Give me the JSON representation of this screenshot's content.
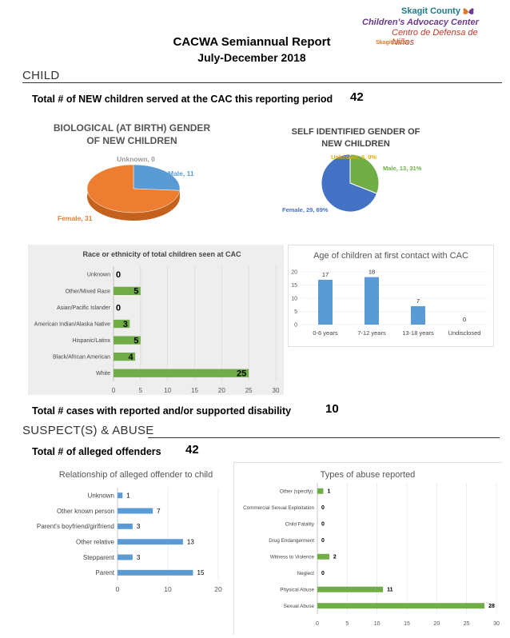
{
  "logo": {
    "line1": "Skagit County",
    "line2": "Children's Advocacy Center",
    "line3": "Centro de Defensa de Niños",
    "line4": "SkagitCASA",
    "colors": {
      "teal": "#1f7a8c",
      "orange": "#e07a2a",
      "purple": "#6b3a8c",
      "red": "#c0392b"
    }
  },
  "report": {
    "title": "CACWA Semiannual Report",
    "period": "July-December 2018"
  },
  "sections": {
    "child": "CHILD",
    "suspects": "SUSPECT(S) & ABUSE"
  },
  "stats": {
    "new_children_label": "Total # of NEW children served at the CAC this reporting period",
    "new_children_value": "42",
    "disability_label": "Total # cases with reported and/or supported disability",
    "disability_value": "10",
    "offenders_label": "Total # of alleged offenders",
    "offenders_value": "42"
  },
  "chart_data": [
    {
      "id": "bio-gender",
      "type": "pie",
      "title": "BIOLOGICAL (AT BIRTH) GENDER OF NEW CHILDREN",
      "title_line1": "BIOLOGICAL (AT BIRTH) GENDER",
      "title_line2": "OF NEW CHILDREN",
      "slices": [
        {
          "label": "Unknown, 0",
          "name": "Unknown",
          "value": 0,
          "color": "#a5a5a5"
        },
        {
          "label": "Male, 11",
          "name": "Male",
          "value": 11,
          "color": "#5b9bd5"
        },
        {
          "label": "Female, 31",
          "name": "Female",
          "value": 31,
          "color": "#ed7d31"
        }
      ]
    },
    {
      "id": "self-gender",
      "type": "pie",
      "title": "SELF IDENTIFIED GENDER OF NEW CHILDREN",
      "title_line1": "SELF IDENTIFIED GENDER OF",
      "title_line2": "NEW CHILDREN",
      "slices": [
        {
          "label": "Unknown, 0, 0%",
          "name": "Unknown",
          "value": 0,
          "color": "#ffc000"
        },
        {
          "label": "Male, 13, 31%",
          "name": "Male",
          "value": 13,
          "color": "#70ad47"
        },
        {
          "label": "Female, 29, 69%",
          "name": "Female",
          "value": 29,
          "color": "#4472c4"
        }
      ]
    },
    {
      "id": "race",
      "type": "bar",
      "orientation": "horizontal",
      "title": "Race or ethnicity of total children seen at CAC",
      "categories": [
        "Unknown",
        "Other/Mixed Race",
        "Asian/Pacific Islander",
        "American Indian/Alaska Native",
        "Hispanic/Latinx",
        "Black/African American",
        "White"
      ],
      "values": [
        0,
        5,
        0,
        3,
        5,
        4,
        25
      ],
      "xlim": [
        0,
        30
      ],
      "ticks": [
        0,
        5,
        10,
        15,
        20,
        25,
        30
      ],
      "color": "#70ad47"
    },
    {
      "id": "age",
      "type": "bar",
      "orientation": "vertical",
      "title": "Age of children at first contact with CAC",
      "categories": [
        "0-6 years",
        "7-12 years",
        "13-18 years",
        "Undisclosed"
      ],
      "values": [
        17,
        18,
        7,
        0
      ],
      "ylim": [
        0,
        20
      ],
      "ticks": [
        0,
        5,
        10,
        15,
        20
      ],
      "color": "#5b9bd5"
    },
    {
      "id": "relationship",
      "type": "bar",
      "orientation": "horizontal",
      "title": "Relationship of alleged offender to child",
      "categories": [
        "Unknown",
        "Other known person",
        "Parent's boyfriend/girlfriend",
        "Other relative",
        "Stepparent",
        "Parent"
      ],
      "values": [
        1,
        7,
        3,
        13,
        3,
        15
      ],
      "xlim": [
        0,
        20
      ],
      "ticks": [
        0,
        10,
        20
      ],
      "color": "#5b9bd5"
    },
    {
      "id": "abuse-types",
      "type": "bar",
      "orientation": "horizontal",
      "title": "Types of abuse reported",
      "categories": [
        "Other (specify):",
        "Commercial Sexual Exploitation",
        "Child Fatality",
        "Drug Endangerment",
        "Witness to Violence",
        "Neglect",
        "Physical Abuse",
        "Sexual Abuse"
      ],
      "values": [
        1,
        0,
        0,
        0,
        2,
        0,
        11,
        28
      ],
      "xlim": [
        0,
        30
      ],
      "ticks": [
        0,
        5,
        10,
        15,
        20,
        25,
        30
      ],
      "color": "#70ad47"
    }
  ]
}
